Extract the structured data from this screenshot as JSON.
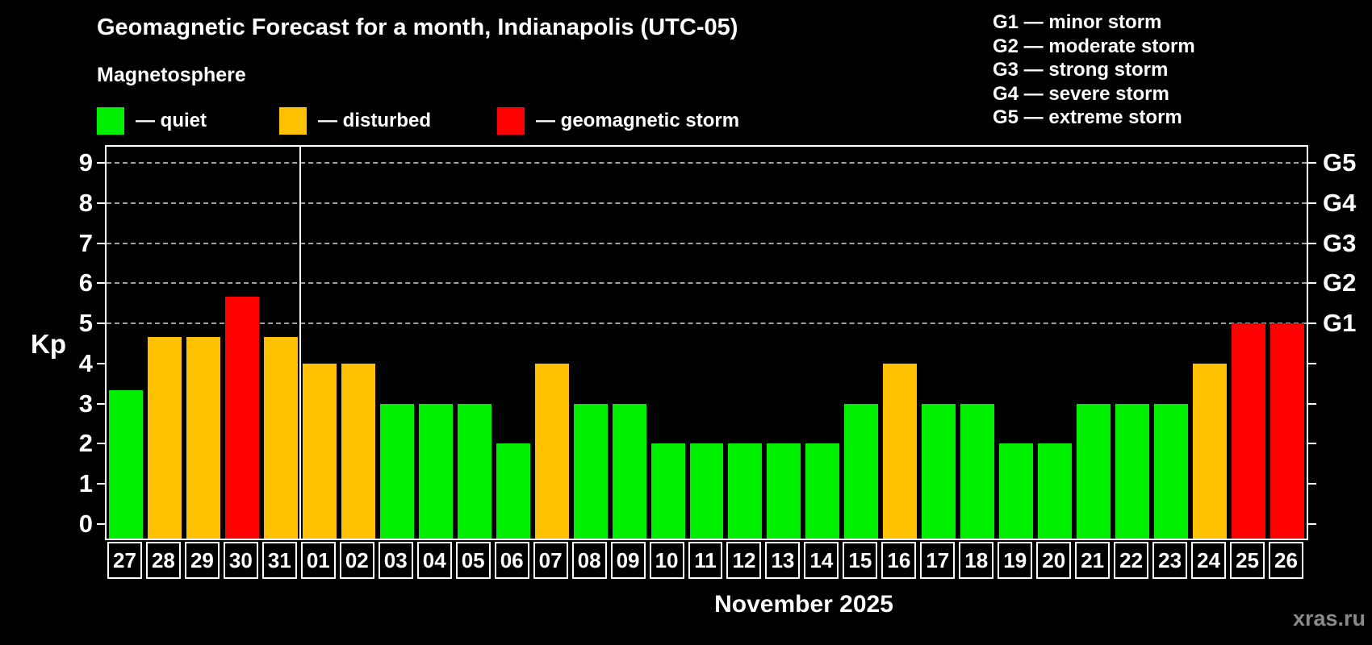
{
  "header": {
    "title": "Geomagnetic Forecast for a month, Indianapolis (UTC-05)",
    "subtitle": "Magnetosphere"
  },
  "legend": {
    "items": [
      {
        "label": "— quiet",
        "status": "quiet",
        "color": "#00ee00"
      },
      {
        "label": "— disturbed",
        "status": "disturbed",
        "color": "#ffc000"
      },
      {
        "label": "— geomagnetic storm",
        "status": "storm",
        "color": "#ff0000"
      }
    ]
  },
  "storm_scale_legend": {
    "items": [
      {
        "label": "G1 — minor storm"
      },
      {
        "label": "G2 — moderate storm"
      },
      {
        "label": "G3 — strong storm"
      },
      {
        "label": "G4 — severe storm"
      },
      {
        "label": "G5 — extreme storm"
      }
    ]
  },
  "watermark": "xras.ru",
  "chart_data": {
    "type": "bar",
    "title": "Geomagnetic Forecast for a month, Indianapolis (UTC-05)",
    "subtitle": "Magnetosphere",
    "xlabel": "November 2025",
    "ylabel": "Kp",
    "ylim": [
      0,
      9.4
    ],
    "y_ticks": [
      0,
      1,
      2,
      3,
      4,
      5,
      6,
      7,
      8,
      9
    ],
    "grid_levels": [
      5,
      6,
      7,
      8,
      9
    ],
    "grid_style": "dashed",
    "legend_position": "top",
    "right_axis": {
      "labels": [
        "G1",
        "G2",
        "G3",
        "G4",
        "G5"
      ],
      "values": [
        5,
        6,
        7,
        8,
        9
      ]
    },
    "month_separator_after_index": 4,
    "status_colors": {
      "quiet": "#00ee00",
      "disturbed": "#ffc000",
      "storm": "#ff0000"
    },
    "categories": [
      "27",
      "28",
      "29",
      "30",
      "31",
      "01",
      "02",
      "03",
      "04",
      "05",
      "06",
      "07",
      "08",
      "09",
      "10",
      "11",
      "12",
      "13",
      "14",
      "15",
      "16",
      "17",
      "18",
      "19",
      "20",
      "21",
      "22",
      "23",
      "24",
      "25",
      "26"
    ],
    "values": [
      3.33,
      4.67,
      4.67,
      5.67,
      4.67,
      4,
      4,
      3,
      3,
      3,
      2,
      4,
      3,
      3,
      2,
      2,
      2,
      2,
      2,
      3,
      4,
      3,
      3,
      2,
      2,
      3,
      3,
      3,
      4,
      5,
      5
    ],
    "statuses": [
      "quiet",
      "disturbed",
      "disturbed",
      "storm",
      "disturbed",
      "disturbed",
      "disturbed",
      "quiet",
      "quiet",
      "quiet",
      "quiet",
      "disturbed",
      "quiet",
      "quiet",
      "quiet",
      "quiet",
      "quiet",
      "quiet",
      "quiet",
      "quiet",
      "disturbed",
      "quiet",
      "quiet",
      "quiet",
      "quiet",
      "quiet",
      "quiet",
      "quiet",
      "disturbed",
      "storm",
      "storm"
    ]
  }
}
